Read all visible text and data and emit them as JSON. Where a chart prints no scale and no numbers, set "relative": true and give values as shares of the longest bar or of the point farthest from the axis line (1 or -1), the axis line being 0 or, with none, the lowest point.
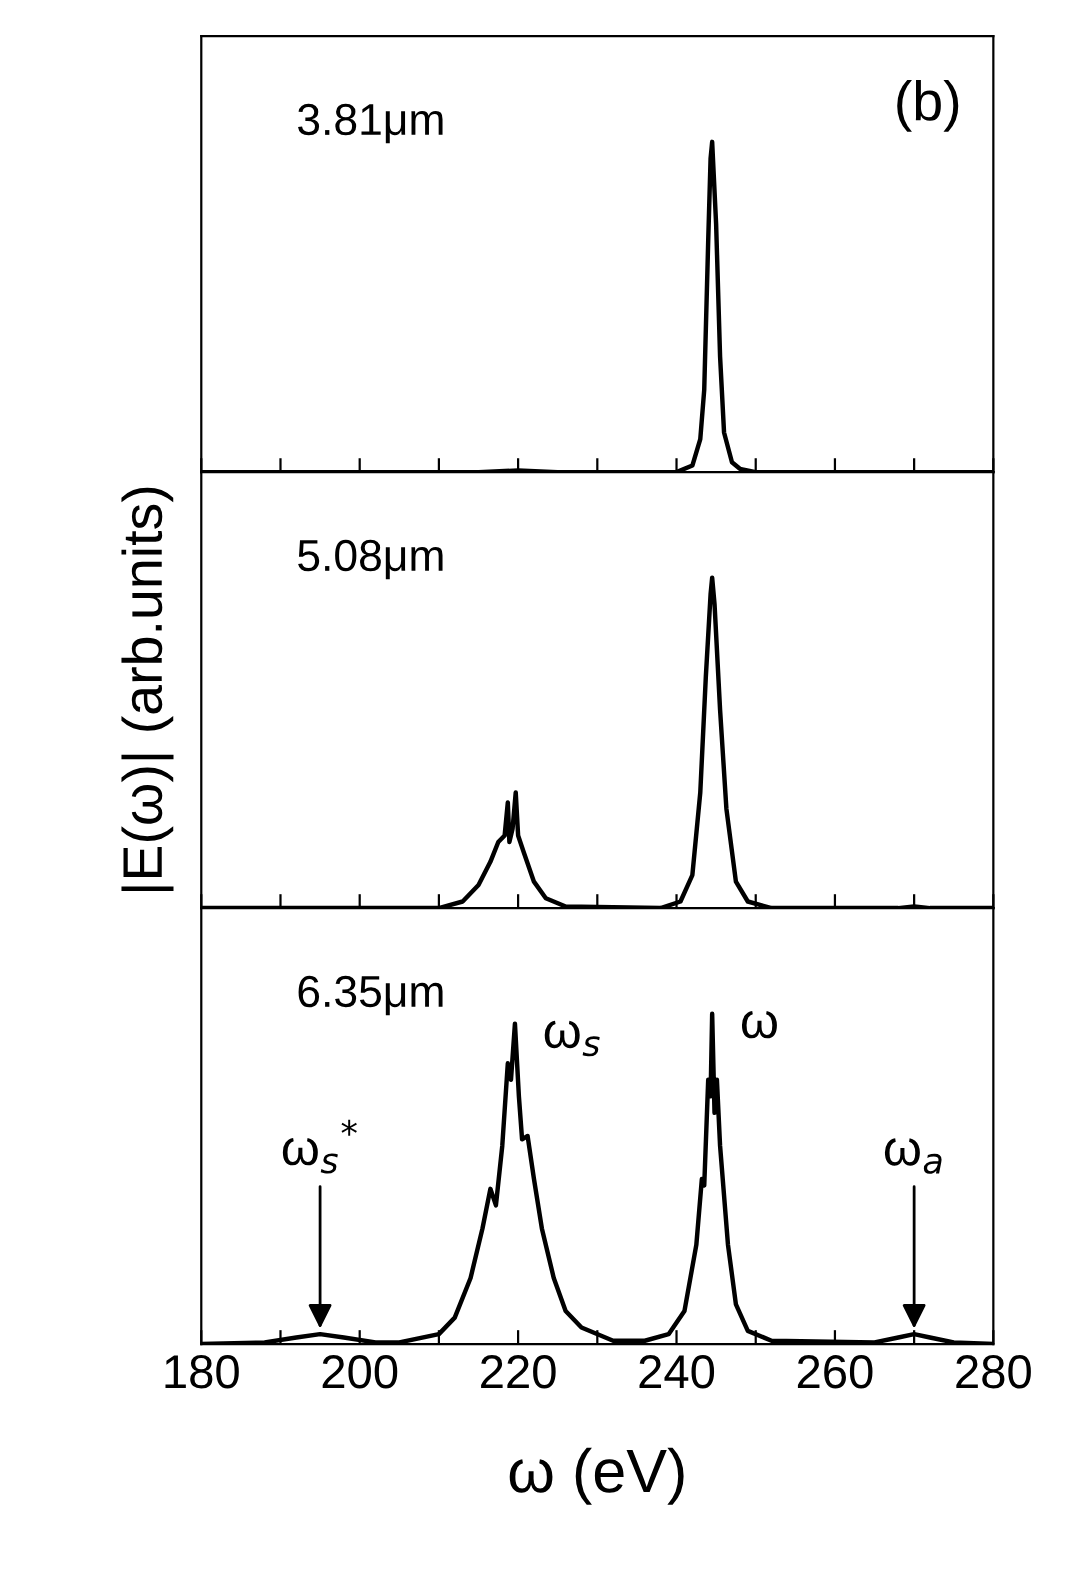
{
  "chart_data": [
    {
      "type": "line",
      "relative": true,
      "xlim": [
        180,
        280
      ],
      "xticks": [
        180,
        {
          "value": 190,
          "label": null
        },
        200,
        {
          "value": 210,
          "label": null
        },
        220,
        {
          "value": 230,
          "label": null
        },
        240,
        {
          "value": 250,
          "label": null
        },
        260,
        {
          "value": 270,
          "label": null
        },
        280
      ],
      "tick_labels": false,
      "grid": false,
      "legend": false,
      "annotations": [
        "3.81μm",
        "(b)"
      ],
      "series": [
        {
          "color": "#000000",
          "x": [
            180,
            215,
            220,
            225,
            240,
            242,
            243,
            243.5,
            244,
            244.3,
            244.5,
            244.7,
            245,
            245.5,
            246,
            247,
            248,
            250,
            280
          ],
          "values": [
            0,
            0,
            0.005,
            0,
            0,
            0.02,
            0.1,
            0.25,
            0.7,
            0.95,
            1.0,
            0.9,
            0.75,
            0.35,
            0.12,
            0.03,
            0.01,
            0,
            0
          ]
        }
      ]
    },
    {
      "type": "line",
      "relative": true,
      "xlim": [
        180,
        280
      ],
      "xticks": [
        180,
        {
          "value": 190,
          "label": null
        },
        200,
        {
          "value": 210,
          "label": null
        },
        220,
        {
          "value": 230,
          "label": null
        },
        240,
        {
          "value": 250,
          "label": null
        },
        260,
        {
          "value": 270,
          "label": null
        },
        280
      ],
      "tick_labels": false,
      "grid": false,
      "legend": false,
      "ylabel": "|E(ω)| (arb.units)",
      "annotations": [
        "5.08μm"
      ],
      "series": [
        {
          "color": "#000000",
          "x": [
            180,
            210,
            213,
            215,
            216.5,
            217.5,
            218.3,
            218.7,
            218.9,
            219.3,
            219.7,
            220,
            220.7,
            222,
            223.5,
            226,
            238,
            240.5,
            242,
            243,
            243.7,
            244.3,
            244.5,
            244.8,
            245.5,
            246.3,
            247.5,
            249,
            252,
            268,
            270,
            272,
            280
          ],
          "values": [
            0,
            0,
            0.02,
            0.07,
            0.14,
            0.2,
            0.22,
            0.32,
            0.2,
            0.24,
            0.35,
            0.22,
            0.17,
            0.08,
            0.03,
            0.005,
            0,
            0.02,
            0.1,
            0.35,
            0.7,
            0.95,
            1.0,
            0.92,
            0.6,
            0.3,
            0.08,
            0.02,
            0,
            0,
            0.005,
            0,
            0
          ]
        }
      ]
    },
    {
      "type": "line",
      "relative": true,
      "xlim": [
        180,
        280
      ],
      "xticks": [
        180,
        {
          "value": 190,
          "label": null
        },
        200,
        {
          "value": 210,
          "label": null
        },
        220,
        {
          "value": 230,
          "label": null
        },
        240,
        {
          "value": 250,
          "label": null
        },
        260,
        {
          "value": 270,
          "label": null
        },
        280
      ],
      "tick_labels": "x",
      "grid": false,
      "legend": false,
      "xlabel": "ω (eV)",
      "annotations": [
        "6.35μm",
        {
          "text": "ω$_{s}$",
          "x": 219.6,
          "y": 0.97
        },
        {
          "text": "ω",
          "x": 244.5,
          "y": 1.0
        },
        {
          "text": "ω$_{s}$$^{*}$",
          "x": 195,
          "y": 0.03
        },
        {
          "text": "ω$_{a}$",
          "x": 270,
          "y": 0.03
        }
      ],
      "series": [
        {
          "color": "#000000",
          "x": [
            180,
            188,
            192,
            195,
            198,
            202,
            205,
            210,
            212,
            214,
            215.5,
            216.5,
            217.2,
            218,
            218.7,
            219.1,
            219.6,
            220.1,
            220.5,
            221.2,
            222,
            223,
            224.5,
            226,
            228,
            232,
            236,
            239,
            241,
            242.5,
            243.2,
            243.5,
            244,
            244.3,
            244.5,
            244.8,
            245.1,
            245.5,
            246.5,
            247.5,
            249,
            252,
            265,
            268,
            270,
            272,
            275,
            280
          ],
          "values": [
            0,
            0.005,
            0.02,
            0.03,
            0.02,
            0.005,
            0.005,
            0.03,
            0.08,
            0.2,
            0.35,
            0.47,
            0.42,
            0.6,
            0.85,
            0.8,
            0.97,
            0.75,
            0.62,
            0.63,
            0.5,
            0.35,
            0.2,
            0.1,
            0.05,
            0.01,
            0.01,
            0.03,
            0.1,
            0.3,
            0.5,
            0.48,
            0.8,
            0.75,
            1.0,
            0.7,
            0.8,
            0.6,
            0.3,
            0.12,
            0.04,
            0.01,
            0.005,
            0.02,
            0.03,
            0.02,
            0.005,
            0
          ]
        }
      ]
    }
  ]
}
